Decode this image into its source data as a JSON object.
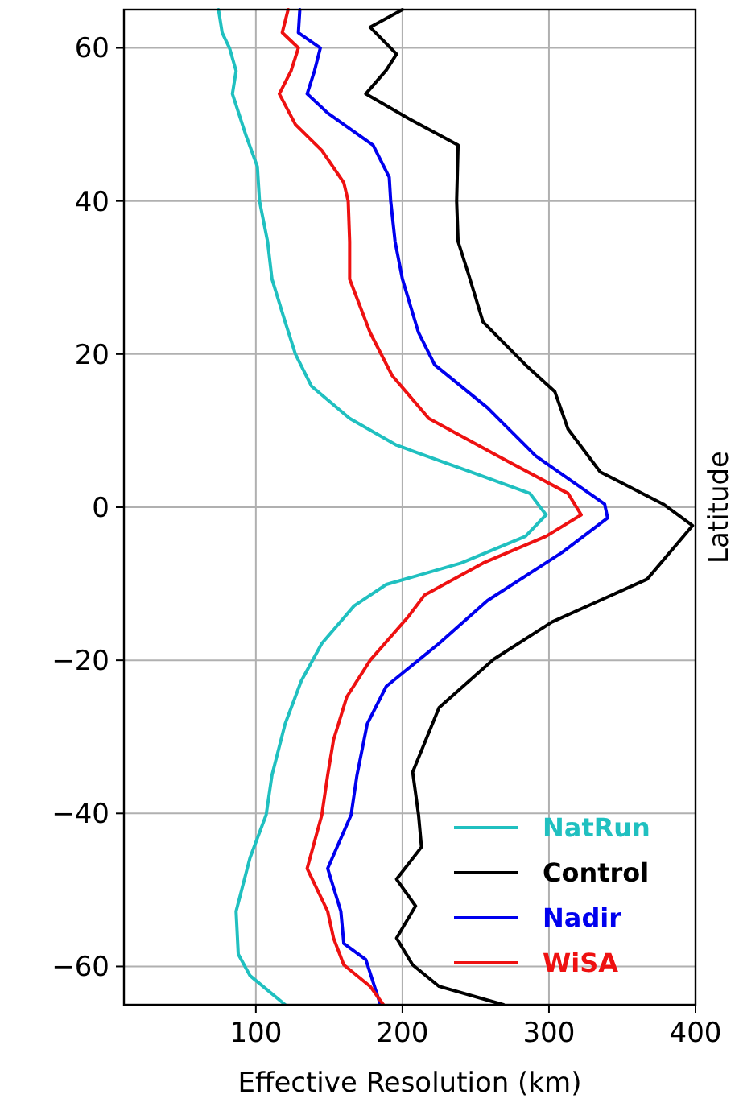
{
  "chart_data": {
    "type": "line",
    "xlabel": "Effective Resolution  (km)",
    "ylabel": "Latitude",
    "xlim": [
      10,
      400
    ],
    "xticks": [
      100,
      200,
      300,
      400
    ],
    "ylim": [
      -65,
      65
    ],
    "yticks": [
      -60,
      -40,
      -20,
      0,
      20,
      40,
      60
    ],
    "grid": true,
    "legend": "bottom right",
    "line_style": "solid",
    "marker": "none",
    "series": [
      {
        "name": "NatRun",
        "color": "#20c0c0",
        "x": [
          74.5,
          77,
          82,
          86.5,
          84,
          93,
          101,
          102.5,
          108,
          111,
          120,
          127,
          138,
          164,
          196,
          247,
          287,
          298,
          284,
          240,
          189,
          167,
          145,
          131,
          120,
          111,
          107,
          96,
          86.5,
          88,
          96,
          120
        ],
        "values": [
          65,
          62,
          60,
          57,
          54,
          48.7,
          44.5,
          40,
          34.7,
          29.8,
          24.2,
          20,
          15.8,
          11.6,
          8.1,
          4.6,
          1.8,
          -1,
          -3.8,
          -7.3,
          -10.1,
          -12.9,
          -17.8,
          -22.7,
          -28.3,
          -35,
          -40.2,
          -45.8,
          -52.8,
          -58.4,
          -61.2,
          -65
        ]
      },
      {
        "name": "Control",
        "color": "#000000",
        "x": [
          200,
          178,
          196,
          189,
          175,
          204,
          238,
          237,
          238,
          245,
          255,
          284,
          304,
          313,
          335,
          378,
          398,
          367,
          302,
          262,
          225,
          207,
          211,
          213,
          196,
          209,
          196,
          207,
          225,
          269
        ],
        "values": [
          65,
          62.7,
          59.2,
          57.1,
          54,
          50.8,
          47.3,
          40,
          34.7,
          30.5,
          24.2,
          18.6,
          15.1,
          10.2,
          4.6,
          0.4,
          -2.4,
          -9.4,
          -15,
          -19.9,
          -26.2,
          -34.6,
          -40.2,
          -44.4,
          -48.6,
          -52.1,
          -56.3,
          -59.8,
          -62.6,
          -65
        ]
      },
      {
        "name": "Nadir",
        "color": "#0000ee",
        "x": [
          130,
          129,
          144,
          140,
          135,
          149,
          180,
          191,
          192,
          195,
          200,
          211,
          222,
          258,
          291,
          338,
          340,
          309,
          258,
          225,
          189,
          176,
          169,
          165,
          149,
          158,
          160,
          175,
          185
        ],
        "values": [
          65,
          62,
          60,
          57,
          54,
          51.5,
          47.3,
          43.1,
          40,
          34.7,
          29.8,
          22.8,
          18.6,
          13,
          6.7,
          0.4,
          -1.4,
          -5.9,
          -12.2,
          -17.8,
          -23.4,
          -28.3,
          -35,
          -40.2,
          -47.2,
          -52.8,
          -57,
          -59.1,
          -65
        ]
      },
      {
        "name": "WiSA",
        "color": "#ee1111",
        "x": [
          122,
          118,
          129,
          124,
          116,
          127,
          145,
          160,
          163,
          164,
          164,
          178,
          193,
          218,
          265,
          313,
          322,
          298,
          255,
          215,
          204,
          178,
          162,
          153,
          149,
          145,
          135,
          149,
          153,
          160,
          178,
          187
        ],
        "values": [
          65,
          62,
          60,
          57,
          54,
          50,
          46.6,
          42.4,
          40,
          34.7,
          29.8,
          22.8,
          17.2,
          11.6,
          6.7,
          1.8,
          -1,
          -3.8,
          -7.3,
          -11.5,
          -14.3,
          -20,
          -24.8,
          -30.4,
          -35,
          -40.2,
          -47.2,
          -52.8,
          -56.3,
          -59.8,
          -62.6,
          -65
        ]
      }
    ]
  }
}
